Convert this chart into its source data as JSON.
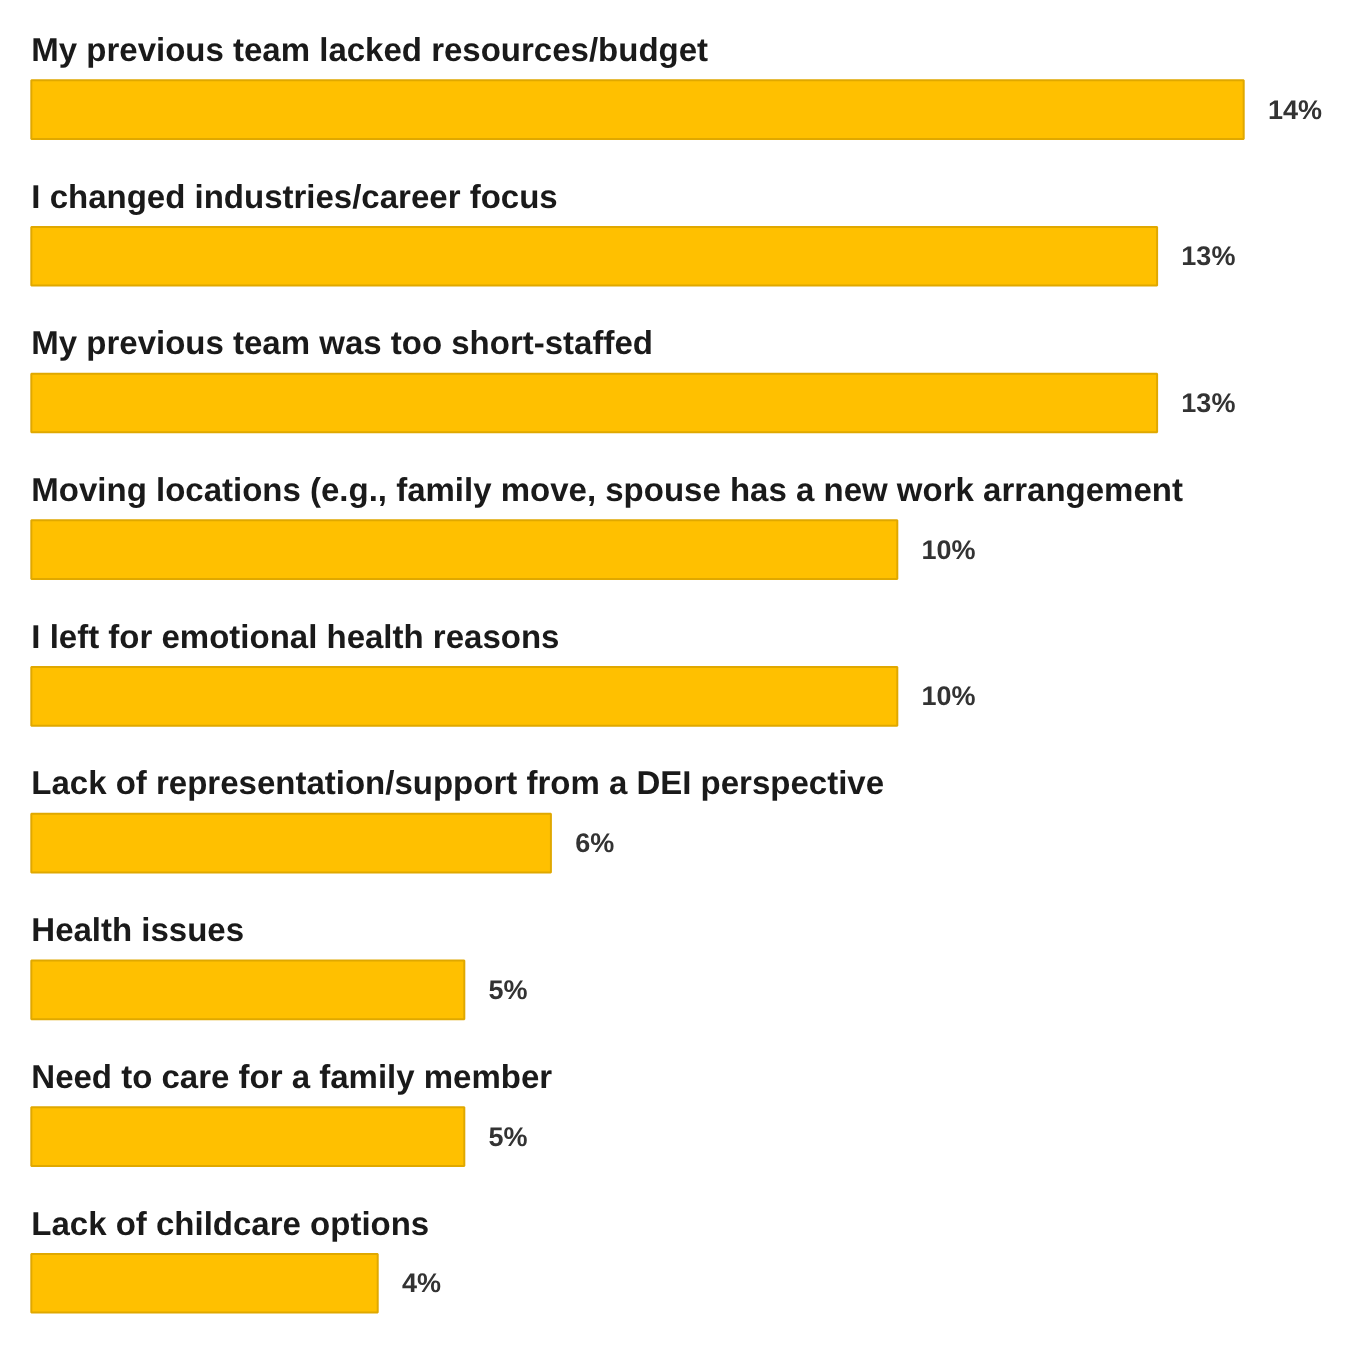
{
  "chart_data": {
    "type": "bar",
    "orientation": "horizontal",
    "categories": [
      "My previous team lacked resources/budget",
      "I changed industries/career focus",
      "My previous team was too short-staffed",
      "Moving locations (e.g., family move, spouse has a new work arrangement",
      "I left for emotional health reasons",
      "Lack of representation/support from a DEI perspective",
      "Health issues",
      "Need to care for a family member",
      "Lack of childcare options"
    ],
    "values": [
      14,
      13,
      13,
      10,
      10,
      6,
      5,
      5,
      4
    ],
    "color": "#ffc000",
    "value_labels": [
      "14%",
      "13%",
      "13%",
      "10%",
      "10%",
      "6%",
      "5%",
      "5%",
      "4%"
    ],
    "tick_labels": false,
    "grid": false
  }
}
